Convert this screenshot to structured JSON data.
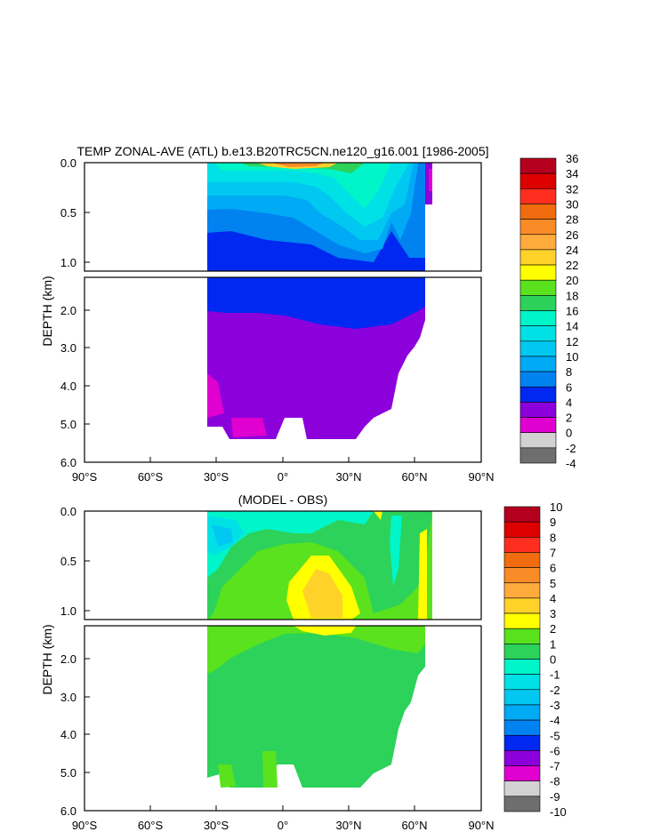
{
  "chart_data": [
    {
      "type": "heatmap",
      "title": "TEMP ZONAL-AVE (ATL) b.e13.B20TRC5CN.ne120_g16.001 [1986-2005]",
      "ylabel": "DEPTH (km)",
      "upper_y_ticks": [
        "0.0",
        "0.5",
        "1.0"
      ],
      "lower_y_ticks": [
        "2.0",
        "3.0",
        "4.0",
        "5.0",
        "6.0"
      ],
      "x_ticks": [
        "90°S",
        "60°S",
        "30°S",
        "0°",
        "30°N",
        "60°N",
        "90°N"
      ],
      "x_values": [
        -90,
        -60,
        -30,
        0,
        30,
        60,
        90
      ],
      "ylim_upper": [
        0.0,
        1.1
      ],
      "ylim_lower": [
        1.1,
        6.0
      ],
      "colorbar": {
        "labels": [
          "36",
          "34",
          "32",
          "30",
          "28",
          "26",
          "24",
          "22",
          "20",
          "18",
          "16",
          "14",
          "12",
          "10",
          "8",
          "6",
          "4",
          "2",
          "0",
          "-2",
          "-4"
        ],
        "colors": [
          "#b4001e",
          "#dc0000",
          "#ff2e1e",
          "#f06c0e",
          "#fa8c28",
          "#ffaa3c",
          "#ffd22a",
          "#ffff00",
          "#5ae21e",
          "#2cd25a",
          "#00f5c8",
          "#00e1e6",
          "#00c8f0",
          "#00aaf5",
          "#0082f0",
          "#0028f0",
          "#8c00dc",
          "#e000d0",
          "#d2d2d2",
          "#6e6e6e"
        ]
      },
      "features": [
        "Warm surface waters in the tropics near the equator",
        "Cold deep water (2 to 4) below about 2.3 km",
        "Field spans roughly 35°S to 67°N"
      ]
    },
    {
      "type": "heatmap",
      "title": "(MODEL - OBS)",
      "ylabel": "DEPTH (km)",
      "upper_y_ticks": [
        "0.0",
        "0.5",
        "1.0"
      ],
      "lower_y_ticks": [
        "2.0",
        "3.0",
        "4.0",
        "5.0",
        "6.0"
      ],
      "x_ticks": [
        "90°S",
        "60°S",
        "30°S",
        "0°",
        "30°N",
        "60°N",
        "90°N"
      ],
      "x_values": [
        -90,
        -60,
        -30,
        0,
        30,
        60,
        90
      ],
      "ylim_upper": [
        0.0,
        1.1
      ],
      "ylim_lower": [
        1.1,
        6.0
      ],
      "colorbar": {
        "labels": [
          "10",
          "9",
          "8",
          "7",
          "6",
          "5",
          "4",
          "3",
          "2",
          "1",
          "0",
          "-1",
          "-2",
          "-3",
          "-4",
          "-5",
          "-6",
          "-7",
          "-8",
          "-9",
          "-10"
        ],
        "colors": [
          "#b4001e",
          "#dc0000",
          "#ff2e1e",
          "#f06c0e",
          "#fa8c28",
          "#ffaa3c",
          "#ffd22a",
          "#ffff00",
          "#5ae21e",
          "#2cd25a",
          "#00f5c8",
          "#00e1e6",
          "#00c8f0",
          "#00aaf5",
          "#0082f0",
          "#0028f0",
          "#8c00dc",
          "#e000d0",
          "#d2d2d2",
          "#6e6e6e"
        ]
      },
      "features": [
        "Mostly small differences (0 to 1) at depth",
        "Warm bias (2 to 4) around 15-25°N near 0.5-1.2 km",
        "Cool bias (-1 to -3) near the surface south of the equator"
      ]
    }
  ]
}
